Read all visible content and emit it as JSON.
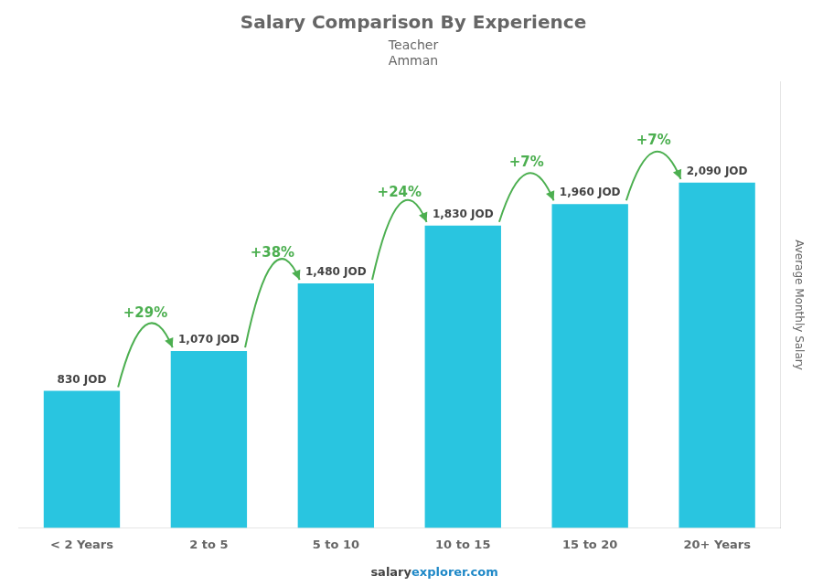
{
  "chart_data": {
    "type": "bar",
    "title": "Salary Comparison By Experience",
    "subtitle": [
      "Teacher",
      "Amman"
    ],
    "categories": [
      "< 2 Years",
      "2 to 5",
      "5 to 10",
      "10 to 15",
      "15 to 20",
      "20+ Years"
    ],
    "values": [
      830,
      1070,
      1480,
      1830,
      1960,
      2090
    ],
    "value_labels": [
      "830 JOD",
      "1,070 JOD",
      "1,480 JOD",
      "1,830 JOD",
      "1,960 JOD",
      "2,090 JOD"
    ],
    "data_labels": true,
    "annotations": [
      "+29%",
      "+38%",
      "+24%",
      "+7%",
      "+7%"
    ],
    "y_label": "Average Monthly Salary",
    "footer": [
      "salary",
      "explorer.com"
    ],
    "color": "#29c5e0",
    "ylim": [
      0,
      2700
    ],
    "grid": false,
    "tick_labels": "x"
  }
}
